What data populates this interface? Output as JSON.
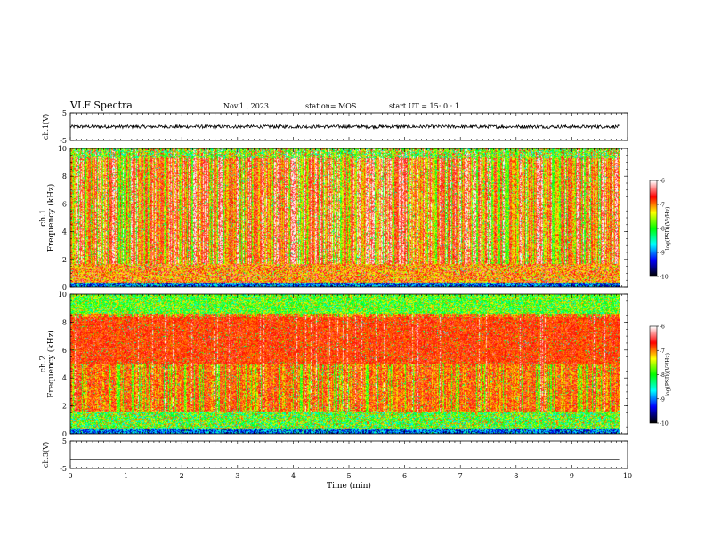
{
  "header": {
    "title": "VLF Spectra",
    "date": "Nov.1 , 2023",
    "station": "station= MOS",
    "start_ut": "start UT =  15: 0  : 1"
  },
  "chart_data": [
    {
      "type": "line",
      "panel": "ch1-waveform",
      "ylabel": "ch.1(V)",
      "ylim": [
        -5,
        5
      ],
      "yticks": [
        "5",
        "-5"
      ],
      "x_range": [
        0,
        9.85
      ],
      "baseline_value": 0,
      "noise_amplitude": 0.6
    },
    {
      "type": "heatmap",
      "panel": "ch1-spectrogram",
      "ylabel": "ch.1",
      "ylabel2": "Frequency (kHz)",
      "ylim": [
        0,
        10
      ],
      "yticks": [
        "0",
        "2",
        "4",
        "6",
        "8",
        "10"
      ],
      "x_range": [
        0,
        9.85
      ],
      "colorbar": {
        "label": "log(PSD)(V²/Hz)",
        "ticks": [
          "-6",
          "-7",
          "-8",
          "-9",
          "-10"
        ],
        "range": [
          -10,
          -6
        ]
      }
    },
    {
      "type": "heatmap",
      "panel": "ch2-spectrogram",
      "ylabel": "ch.2",
      "ylabel2": "Frequency (kHz)",
      "ylim": [
        0,
        10
      ],
      "yticks": [
        "0",
        "2",
        "4",
        "6",
        "8",
        "10"
      ],
      "x_range": [
        0,
        9.85
      ],
      "colorbar": {
        "label": "log(PSD)(V²/Hz)",
        "ticks": [
          "-6",
          "-7",
          "-8",
          "-9",
          "-10"
        ],
        "range": [
          -10,
          -6
        ]
      }
    },
    {
      "type": "line",
      "panel": "ch3-waveform",
      "ylabel": "ch.3(V)",
      "ylim": [
        -5,
        5
      ],
      "yticks": [
        "5",
        "-5"
      ],
      "x_range": [
        0,
        9.85
      ],
      "baseline_value": -1.8,
      "noise_amplitude": 0
    }
  ],
  "xaxis": {
    "label": "Time (min)",
    "ticks": [
      "0",
      "1",
      "2",
      "3",
      "4",
      "5",
      "6",
      "7",
      "8",
      "9",
      "10"
    ],
    "xlim": [
      0,
      10
    ]
  },
  "colors": {
    "colormap": [
      "#000000",
      "#0000ff",
      "#00ffff",
      "#00ff00",
      "#ffff00",
      "#ff0000",
      "#ffffff"
    ],
    "waveform": "#000000"
  }
}
